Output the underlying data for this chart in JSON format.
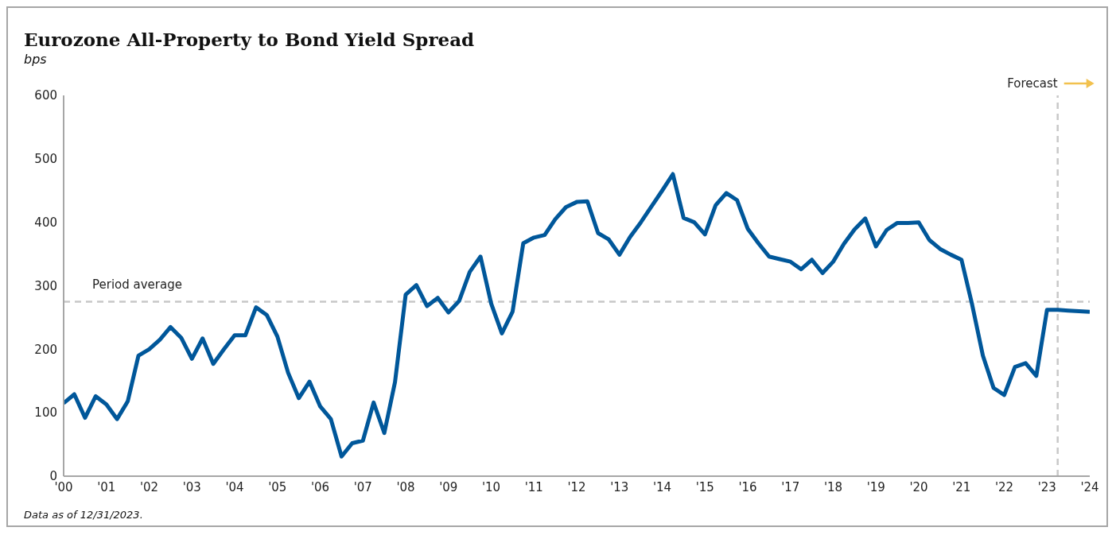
{
  "chart_data": {
    "type": "line",
    "title": "Eurozone All-Property to Bond Yield Spread",
    "subtitle": "bps",
    "annotations": [
      "Data as of 12/31/2023."
    ],
    "x": [
      2000,
      2000.25,
      2000.5,
      2000.75,
      2001,
      2001.25,
      2001.5,
      2001.75,
      2002,
      2002.25,
      2002.5,
      2002.75,
      2003,
      2003.25,
      2003.5,
      2003.75,
      2004,
      2004.25,
      2004.5,
      2004.75,
      2005,
      2005.25,
      2005.5,
      2005.75,
      2006,
      2006.25,
      2006.5,
      2006.75,
      2007,
      2007.25,
      2007.5,
      2007.75,
      2008,
      2008.25,
      2008.5,
      2008.75,
      2009,
      2009.25,
      2009.5,
      2009.75,
      2010,
      2010.25,
      2010.5,
      2010.75,
      2011,
      2011.25,
      2011.5,
      2011.75,
      2012,
      2012.25,
      2012.5,
      2012.75,
      2013,
      2013.25,
      2013.5,
      2013.75,
      2014,
      2014.25,
      2014.5,
      2014.75,
      2015,
      2015.25,
      2015.5,
      2015.75,
      2016,
      2016.25,
      2016.5,
      2016.75,
      2017,
      2017.25,
      2017.5,
      2017.75,
      2018,
      2018.25,
      2018.5,
      2018.75,
      2019,
      2019.25,
      2019.5,
      2019.75,
      2020,
      2020.25,
      2020.5,
      2020.75,
      2021,
      2021.25,
      2021.5,
      2021.75,
      2022,
      2022.25,
      2022.5,
      2022.75,
      2023,
      2023.25,
      2023.5,
      2023.75,
      2024
    ],
    "series": [
      {
        "color": "#00579a",
        "values": [
          115,
          129,
          92,
          126,
          113,
          90,
          118,
          190,
          200,
          215,
          235,
          218,
          185,
          217,
          177,
          200,
          222,
          222,
          266,
          254,
          220,
          163,
          123,
          149,
          110,
          90,
          31,
          52,
          56,
          116,
          68,
          148,
          286,
          301,
          268,
          281,
          258,
          276,
          322,
          346,
          272,
          225,
          259,
          367,
          376,
          380,
          405,
          424,
          432,
          433,
          383,
          373,
          349,
          377,
          400,
          425,
          450,
          476,
          407,
          400,
          381,
          427,
          446,
          435,
          390,
          367,
          346,
          342,
          338,
          326,
          341,
          320,
          338,
          366,
          389,
          406,
          362,
          388,
          399,
          399,
          400,
          372,
          358,
          349,
          341,
          270,
          190,
          139,
          128,
          172,
          178,
          158,
          262,
          262,
          261,
          260,
          259
        ]
      }
    ],
    "xlim": [
      2000,
      2024
    ],
    "xticks": [
      {
        "value": 2000,
        "label": "'00"
      },
      {
        "value": 2001,
        "label": "'01"
      },
      {
        "value": 2002,
        "label": "'02"
      },
      {
        "value": 2003,
        "label": "'03"
      },
      {
        "value": 2004,
        "label": "'04"
      },
      {
        "value": 2005,
        "label": "'05"
      },
      {
        "value": 2006,
        "label": "'06"
      },
      {
        "value": 2007,
        "label": "'07"
      },
      {
        "value": 2008,
        "label": "'08"
      },
      {
        "value": 2009,
        "label": "'09"
      },
      {
        "value": 2010,
        "label": "'10"
      },
      {
        "value": 2011,
        "label": "'11"
      },
      {
        "value": 2012,
        "label": "'12"
      },
      {
        "value": 2013,
        "label": "'13"
      },
      {
        "value": 2014,
        "label": "'14"
      },
      {
        "value": 2015,
        "label": "'15"
      },
      {
        "value": 2016,
        "label": "'16"
      },
      {
        "value": 2017,
        "label": "'17"
      },
      {
        "value": 2018,
        "label": "'18"
      },
      {
        "value": 2019,
        "label": "'19"
      },
      {
        "value": 2020,
        "label": "'20"
      },
      {
        "value": 2021,
        "label": "'21"
      },
      {
        "value": 2022,
        "label": "'22"
      },
      {
        "value": 2023,
        "label": "'23"
      },
      {
        "value": 2024,
        "label": "'24"
      }
    ],
    "ylim": [
      0,
      600
    ],
    "yticks": [
      0,
      100,
      200,
      300,
      400,
      500,
      600
    ],
    "ref_lines": [
      {
        "axis": "y",
        "value": 275,
        "label": "Period average",
        "color": "#c8c8c8",
        "line_style": "dashed"
      },
      {
        "axis": "x",
        "value": 2023.25,
        "label": "Forecast",
        "color": "#c8c8c8",
        "line_style": "dashed"
      }
    ],
    "marker": "none",
    "line_style": "solid"
  }
}
